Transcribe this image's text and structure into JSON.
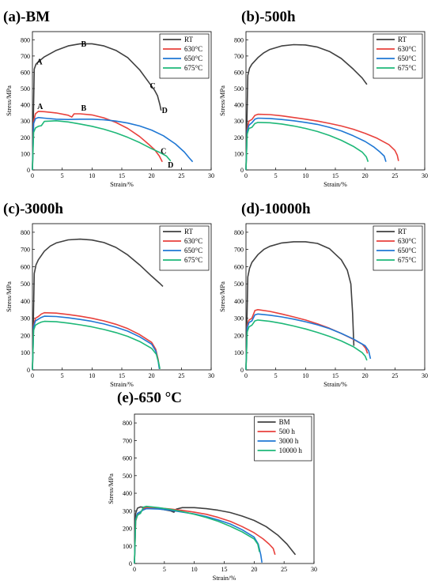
{
  "chart_data": [
    {
      "type": "line",
      "title": "(a)-BM",
      "xlabel": "Strain/%",
      "ylabel": "Stress/MPa",
      "xlim": [
        0,
        30
      ],
      "ylim": [
        0,
        850
      ],
      "xticks": [
        "0",
        "5",
        "10",
        "15",
        "20",
        "25",
        "30"
      ],
      "yticks": [
        "0",
        "100",
        "200",
        "300",
        "400",
        "500",
        "600",
        "700",
        "800"
      ],
      "legend": "top-right",
      "series": [
        {
          "name": "RT",
          "color": "#404040",
          "x": [
            0,
            0.3,
            0.6,
            1,
            2,
            4,
            6,
            8,
            10,
            12,
            14,
            16,
            18,
            19.5,
            20.5,
            21,
            21.4,
            21.6
          ],
          "y": [
            0,
            620,
            650,
            665,
            695,
            735,
            762,
            775,
            775,
            762,
            735,
            690,
            615,
            540,
            490,
            455,
            400,
            365
          ]
        },
        {
          "name": "630°C",
          "color": "#e8413c",
          "x": [
            0,
            0.2,
            0.5,
            1,
            2,
            4,
            6,
            6.6,
            7,
            8,
            10,
            12,
            14,
            16,
            18,
            19.5,
            20.5,
            21.3,
            21.8
          ],
          "y": [
            0,
            300,
            345,
            360,
            358,
            350,
            336,
            325,
            345,
            345,
            338,
            320,
            292,
            255,
            205,
            158,
            125,
            85,
            50
          ]
        },
        {
          "name": "650°C",
          "color": "#1f77d4",
          "x": [
            0,
            0.2,
            0.5,
            1,
            2,
            4,
            6,
            8,
            10,
            12,
            14,
            16,
            18,
            20,
            22,
            24,
            25.5,
            26.3,
            26.9
          ],
          "y": [
            0,
            285,
            315,
            322,
            318,
            312,
            310,
            312,
            312,
            308,
            300,
            288,
            270,
            245,
            210,
            160,
            110,
            75,
            50
          ]
        },
        {
          "name": "675°C",
          "color": "#1eb878",
          "x": [
            0,
            0.2,
            0.5,
            1,
            1.5,
            2,
            4,
            6,
            8,
            10,
            12,
            14,
            16,
            18,
            20,
            21.5,
            22.5,
            23.2
          ],
          "y": [
            0,
            230,
            258,
            268,
            272,
            298,
            302,
            295,
            282,
            268,
            250,
            228,
            200,
            168,
            130,
            105,
            85,
            55
          ]
        }
      ],
      "annotations": [
        {
          "text": "A",
          "x": 1.2,
          "y": 648
        },
        {
          "text": "B",
          "x": 8.6,
          "y": 758
        },
        {
          "text": "C",
          "x": 20.2,
          "y": 500
        },
        {
          "text": "D",
          "x": 22.2,
          "y": 350
        },
        {
          "text": "A",
          "x": 1.3,
          "y": 375
        },
        {
          "text": "B",
          "x": 8.6,
          "y": 365
        },
        {
          "text": "C",
          "x": 22,
          "y": 100
        },
        {
          "text": "D",
          "x": 23.2,
          "y": 15
        }
      ]
    },
    {
      "type": "line",
      "title": "(b)-500h",
      "xlabel": "Strain/%",
      "ylabel": "Stress/MPa",
      "xlim": [
        0,
        30
      ],
      "ylim": [
        0,
        850
      ],
      "xticks": [
        "0",
        "5",
        "10",
        "15",
        "20",
        "25",
        "30"
      ],
      "yticks": [
        "0",
        "100",
        "200",
        "300",
        "400",
        "500",
        "600",
        "700",
        "800"
      ],
      "legend": "top-right",
      "series": [
        {
          "name": "RT",
          "color": "#404040",
          "x": [
            0,
            0.3,
            0.6,
            1,
            2,
            3,
            4,
            6,
            8,
            10,
            12,
            14,
            16,
            18,
            19.5,
            20.3
          ],
          "y": [
            0,
            580,
            625,
            650,
            690,
            720,
            740,
            762,
            770,
            768,
            755,
            728,
            685,
            620,
            565,
            525
          ]
        },
        {
          "name": "630°C",
          "color": "#e8413c",
          "x": [
            0,
            0.2,
            0.5,
            1,
            1.5,
            2,
            4,
            6,
            8,
            10,
            12,
            14,
            16,
            18,
            20,
            22,
            24,
            25,
            25.4,
            25.6
          ],
          "y": [
            0,
            250,
            300,
            310,
            335,
            342,
            340,
            332,
            322,
            312,
            300,
            286,
            270,
            250,
            225,
            195,
            155,
            120,
            90,
            55
          ]
        },
        {
          "name": "650°C",
          "color": "#1f77d4",
          "x": [
            0,
            0.2,
            0.5,
            1,
            1.5,
            2,
            4,
            6,
            8,
            10,
            12,
            14,
            16,
            18,
            20,
            21.5,
            22.5,
            23.2,
            23.5
          ],
          "y": [
            0,
            240,
            275,
            290,
            312,
            318,
            316,
            310,
            302,
            292,
            280,
            262,
            240,
            210,
            175,
            140,
            110,
            85,
            50
          ]
        },
        {
          "name": "675°C",
          "color": "#1eb878",
          "x": [
            0,
            0.2,
            0.5,
            1,
            1.5,
            2,
            4,
            6,
            8,
            10,
            12,
            14,
            16,
            18,
            19.5,
            20.2,
            20.5
          ],
          "y": [
            0,
            220,
            255,
            262,
            285,
            292,
            290,
            282,
            270,
            255,
            236,
            212,
            182,
            145,
            110,
            80,
            50
          ]
        }
      ]
    },
    {
      "type": "line",
      "title": "(c)-3000h",
      "xlabel": "Strain/%",
      "ylabel": "Stress/MPa",
      "xlim": [
        0,
        30
      ],
      "ylim": [
        0,
        850
      ],
      "xticks": [
        "0",
        "5",
        "10",
        "15",
        "20",
        "25",
        "30"
      ],
      "yticks": [
        "0",
        "100",
        "200",
        "300",
        "400",
        "500",
        "600",
        "700",
        "800"
      ],
      "legend": "top-right",
      "series": [
        {
          "name": "RT",
          "color": "#404040",
          "x": [
            0,
            0.3,
            0.6,
            1,
            2,
            3,
            4,
            6,
            8,
            10,
            12,
            14,
            16,
            18,
            20,
            21.3,
            21.9
          ],
          "y": [
            0,
            560,
            610,
            640,
            690,
            720,
            738,
            756,
            760,
            755,
            740,
            712,
            668,
            610,
            545,
            505,
            485
          ]
        },
        {
          "name": "630°C",
          "color": "#e8413c",
          "x": [
            0,
            0.2,
            0.5,
            1,
            1.5,
            2,
            4,
            6,
            8,
            10,
            12,
            14,
            16,
            18,
            20,
            20.7,
            21.1,
            21.3
          ],
          "y": [
            0,
            260,
            300,
            310,
            325,
            332,
            330,
            322,
            312,
            300,
            285,
            265,
            240,
            205,
            160,
            120,
            60,
            10
          ]
        },
        {
          "name": "650°C",
          "color": "#1f77d4",
          "x": [
            0,
            0.2,
            0.5,
            1,
            1.5,
            2,
            4,
            6,
            8,
            10,
            12,
            14,
            16,
            18,
            20,
            20.7,
            21.1,
            21.3
          ],
          "y": [
            0,
            250,
            285,
            295,
            305,
            312,
            310,
            303,
            293,
            282,
            267,
            248,
            225,
            192,
            150,
            110,
            50,
            5
          ]
        },
        {
          "name": "675°C",
          "color": "#1eb878",
          "x": [
            0,
            0.2,
            0.5,
            1,
            1.5,
            2,
            4,
            6,
            8,
            10,
            12,
            14,
            16,
            18,
            20,
            20.8,
            21.2,
            21.4
          ],
          "y": [
            0,
            230,
            260,
            270,
            278,
            282,
            280,
            272,
            262,
            250,
            235,
            217,
            195,
            165,
            125,
            90,
            40,
            5
          ]
        }
      ]
    },
    {
      "type": "line",
      "title": "(d)-10000h",
      "xlabel": "Strain/%",
      "ylabel": "Stress/MPa",
      "xlim": [
        0,
        30
      ],
      "ylim": [
        0,
        850
      ],
      "xticks": [
        "0",
        "5",
        "10",
        "15",
        "20",
        "25",
        "30"
      ],
      "yticks": [
        "0",
        "100",
        "200",
        "300",
        "400",
        "500",
        "600",
        "700",
        "800"
      ],
      "legend": "top-right",
      "series": [
        {
          "name": "RT",
          "color": "#404040",
          "x": [
            0,
            0.3,
            0.6,
            1,
            2,
            3,
            4,
            6,
            8,
            10,
            12,
            14,
            16,
            17,
            17.6,
            17.9,
            18.1
          ],
          "y": [
            0,
            540,
            590,
            625,
            670,
            700,
            718,
            738,
            745,
            745,
            735,
            705,
            640,
            580,
            500,
            330,
            140
          ]
        },
        {
          "name": "630°C",
          "color": "#e8413c",
          "x": [
            0,
            0.2,
            0.5,
            1,
            1.5,
            2,
            4,
            6,
            8,
            10,
            12,
            14,
            16,
            18,
            19.5,
            20.1,
            20.4
          ],
          "y": [
            0,
            255,
            290,
            300,
            345,
            350,
            340,
            325,
            308,
            290,
            268,
            242,
            212,
            178,
            150,
            125,
            95
          ]
        },
        {
          "name": "650°C",
          "color": "#1f77d4",
          "x": [
            0,
            0.2,
            0.5,
            1,
            1.5,
            2,
            4,
            6,
            8,
            10,
            12,
            14,
            16,
            18,
            20,
            20.6,
            20.9
          ],
          "y": [
            0,
            245,
            275,
            285,
            320,
            325,
            318,
            308,
            295,
            280,
            262,
            240,
            212,
            180,
            140,
            110,
            65
          ]
        },
        {
          "name": "675°C",
          "color": "#1eb878",
          "x": [
            0,
            0.2,
            0.5,
            1,
            1.5,
            2,
            4,
            6,
            8,
            10,
            12,
            14,
            16,
            18,
            19.5,
            20,
            20.3
          ],
          "y": [
            0,
            220,
            250,
            260,
            285,
            290,
            282,
            270,
            255,
            238,
            218,
            195,
            168,
            135,
            100,
            80,
            55
          ]
        }
      ]
    },
    {
      "type": "line",
      "title": "(e)-650 °C",
      "xlabel": "Strain/%",
      "ylabel": "Stress/MPa",
      "xlim": [
        0,
        30
      ],
      "ylim": [
        0,
        850
      ],
      "xticks": [
        "0",
        "5",
        "10",
        "15",
        "20",
        "25",
        "30"
      ],
      "yticks": [
        "0",
        "100",
        "200",
        "300",
        "400",
        "500",
        "600",
        "700",
        "800"
      ],
      "legend": "top-right",
      "series": [
        {
          "name": "BM",
          "color": "#404040",
          "x": [
            0,
            0.2,
            0.5,
            1,
            2,
            4,
            6,
            6.6,
            7,
            8,
            10,
            12,
            14,
            16,
            18,
            20,
            22,
            24,
            25.5,
            26.3,
            26.9
          ],
          "y": [
            0,
            285,
            315,
            322,
            318,
            312,
            300,
            292,
            310,
            318,
            318,
            312,
            303,
            290,
            270,
            245,
            210,
            160,
            110,
            75,
            50
          ]
        },
        {
          "name": "500 h",
          "color": "#e8413c",
          "x": [
            0,
            0.2,
            0.5,
            1,
            1.5,
            2,
            4,
            6,
            8,
            10,
            12,
            14,
            16,
            18,
            20,
            21.5,
            22.5,
            23.2,
            23.5
          ],
          "y": [
            0,
            240,
            275,
            290,
            312,
            318,
            316,
            310,
            302,
            292,
            280,
            262,
            240,
            210,
            175,
            140,
            110,
            85,
            50
          ]
        },
        {
          "name": "3000 h",
          "color": "#1f77d4",
          "x": [
            0,
            0.2,
            0.5,
            1,
            1.5,
            2,
            4,
            6,
            8,
            10,
            12,
            14,
            16,
            18,
            20,
            20.7,
            21.1,
            21.3
          ],
          "y": [
            0,
            250,
            285,
            295,
            305,
            312,
            310,
            303,
            293,
            282,
            267,
            248,
            225,
            192,
            150,
            110,
            50,
            5
          ]
        },
        {
          "name": "10000 h",
          "color": "#1eb878",
          "x": [
            0,
            0.2,
            0.5,
            1,
            1.5,
            2,
            4,
            6,
            8,
            10,
            12,
            14,
            16,
            18,
            20,
            20.6,
            20.9
          ],
          "y": [
            0,
            245,
            275,
            285,
            320,
            325,
            318,
            308,
            295,
            280,
            262,
            240,
            212,
            180,
            140,
            110,
            65
          ]
        }
      ]
    }
  ]
}
